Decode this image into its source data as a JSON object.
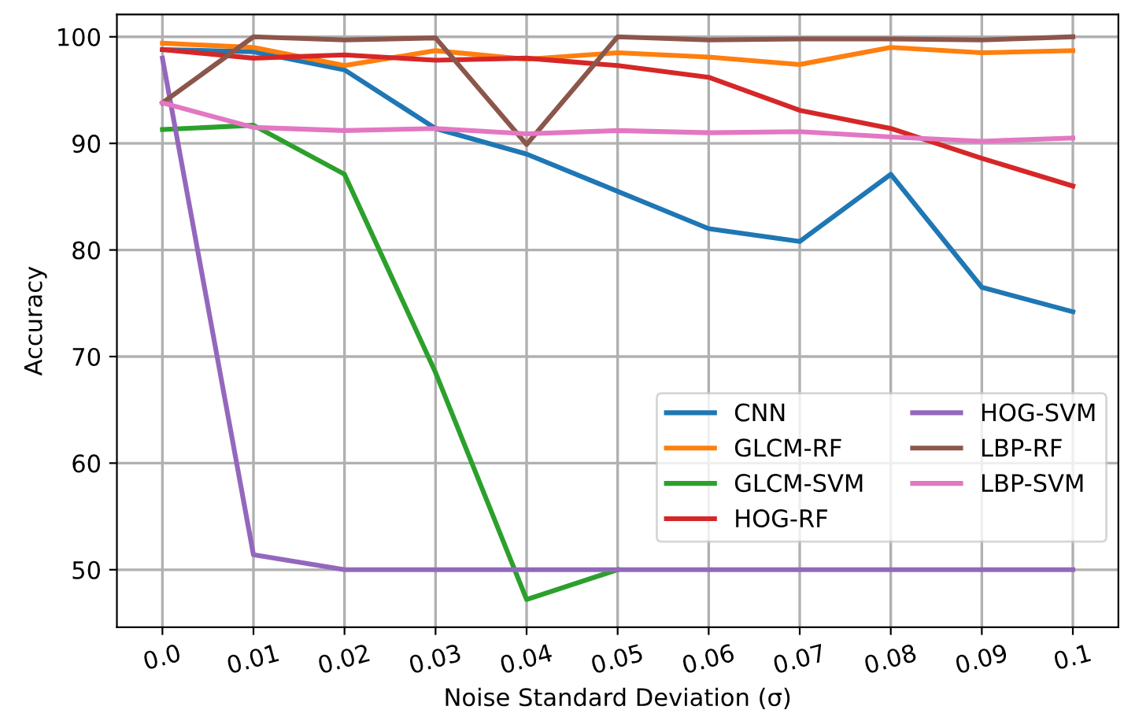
{
  "chart_data": {
    "type": "line",
    "xlabel": "Noise Standard Deviation (σ)",
    "ylabel": "Accuracy",
    "x": [
      0.0,
      0.01,
      0.02,
      0.03,
      0.04,
      0.05,
      0.06,
      0.07,
      0.08,
      0.09,
      0.1
    ],
    "xlim": [
      -0.005,
      0.105
    ],
    "xticks": [
      {
        "value": 0.0,
        "label": "0.0"
      },
      0.01,
      0.02,
      0.03,
      0.04,
      0.05,
      0.06,
      0.07,
      0.08,
      0.09,
      0.1
    ],
    "ylim": [
      44.6,
      102.1
    ],
    "yticks": [
      50,
      60,
      70,
      80,
      90,
      100
    ],
    "grid": true,
    "legend": "bottom right",
    "marker": "none",
    "line_style": "solid",
    "series": [
      {
        "name": "CNN",
        "color": "#1f77b4",
        "values": [
          98.8,
          98.6,
          96.9,
          91.4,
          89.0,
          85.5,
          82.0,
          80.8,
          87.1,
          76.5,
          74.2
        ]
      },
      {
        "name": "GLCM-RF",
        "color": "#ff7f0e",
        "values": [
          99.4,
          99.0,
          97.3,
          98.7,
          97.9,
          98.5,
          98.1,
          97.4,
          99.0,
          98.5,
          98.7
        ]
      },
      {
        "name": "GLCM-SVM",
        "color": "#2ca02c",
        "values": [
          91.3,
          91.7,
          87.1,
          68.5,
          47.2,
          50.0,
          null,
          null,
          null,
          null,
          null
        ]
      },
      {
        "name": "HOG-RF",
        "color": "#d62728",
        "values": [
          98.8,
          98.0,
          98.3,
          97.8,
          98.0,
          97.3,
          96.2,
          93.1,
          91.4,
          88.6,
          86.0
        ]
      },
      {
        "name": "HOG-SVM",
        "color": "#9467bd",
        "values": [
          98.0,
          51.4,
          50.0,
          50.0,
          50.0,
          50.0,
          50.0,
          50.0,
          50.0,
          50.0,
          50.0
        ]
      },
      {
        "name": "LBP-RF",
        "color": "#8c564b",
        "values": [
          93.8,
          100.0,
          99.7,
          99.9,
          89.9,
          100.0,
          99.7,
          99.8,
          99.8,
          99.7,
          100.0
        ]
      },
      {
        "name": "LBP-SVM",
        "color": "#e377c2",
        "values": [
          93.8,
          91.5,
          91.2,
          91.4,
          90.9,
          91.2,
          91.0,
          91.1,
          90.6,
          90.2,
          90.5
        ]
      }
    ]
  }
}
